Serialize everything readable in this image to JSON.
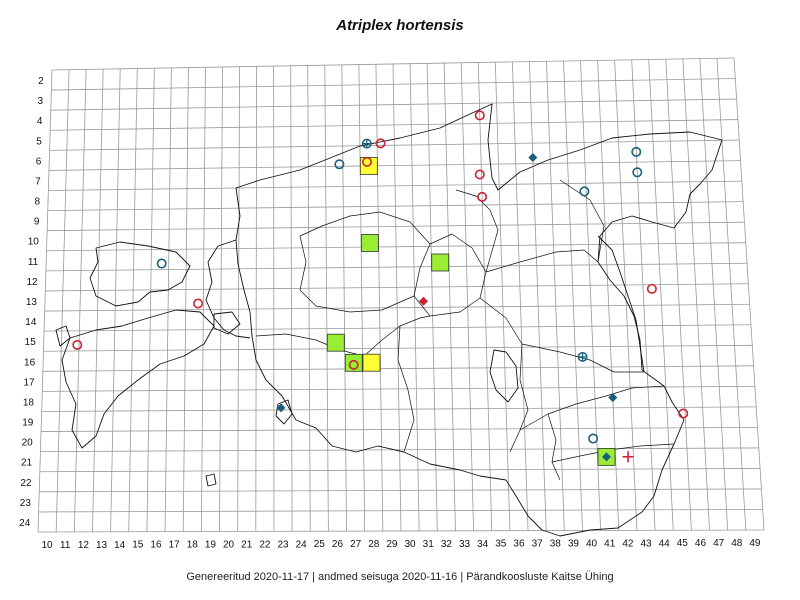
{
  "title": "Atriplex hortensis",
  "footer": "Genereeritud 2020-11-17  |  andmed seisuga 2020-11-16  |  Pärandkoosluste Kaitse Ühing",
  "colors": {
    "grid": "#999999",
    "border": "#111111",
    "yellow": "#ffff33",
    "green": "#99ee33",
    "red": "#cc2233",
    "blue": "#1a5f7a"
  },
  "grid": {
    "col_labels": [
      "10",
      "11",
      "12",
      "13",
      "14",
      "15",
      "16",
      "17",
      "18",
      "19",
      "20",
      "21",
      "22",
      "23",
      "24",
      "25",
      "26",
      "27",
      "28",
      "29",
      "30",
      "31",
      "32",
      "33",
      "34",
      "35",
      "36",
      "37",
      "38",
      "39",
      "40",
      "41",
      "42",
      "43",
      "44",
      "45",
      "46",
      "47",
      "48",
      "49"
    ],
    "row_labels": [
      "2",
      "3",
      "4",
      "5",
      "6",
      "7",
      "8",
      "9",
      "10",
      "11",
      "12",
      "13",
      "14",
      "15",
      "16",
      "17",
      "18",
      "19",
      "20",
      "21",
      "22",
      "23",
      "24"
    ]
  },
  "map_data": {
    "squares": [
      {
        "col": 28,
        "row": 6.5,
        "kind": "yellow"
      },
      {
        "col": 28,
        "row": 10.3,
        "kind": "green"
      },
      {
        "col": 32,
        "row": 11.3,
        "kind": "green"
      },
      {
        "col": 26,
        "row": 15.2,
        "kind": "green"
      },
      {
        "col": 27,
        "row": 16.2,
        "kind": "green"
      },
      {
        "col": 28,
        "row": 16.2,
        "kind": "yellow"
      },
      {
        "col": 41,
        "row": 20.9,
        "kind": "green"
      }
    ],
    "markers": [
      {
        "col": 34.5,
        "row": 4.1,
        "type": "circle",
        "color": "red"
      },
      {
        "col": 28.7,
        "row": 5.4,
        "type": "circle",
        "color": "red"
      },
      {
        "col": 27.9,
        "row": 5.4,
        "type": "circle-plus",
        "color": "blue"
      },
      {
        "col": 26.3,
        "row": 6.4,
        "type": "circle",
        "color": "blue"
      },
      {
        "col": 27.9,
        "row": 6.3,
        "type": "circle",
        "color": "red"
      },
      {
        "col": 34.4,
        "row": 7.0,
        "type": "circle",
        "color": "red"
      },
      {
        "col": 34.5,
        "row": 8.1,
        "type": "circle",
        "color": "red"
      },
      {
        "col": 37.5,
        "row": 6.2,
        "type": "diamond",
        "color": "blue"
      },
      {
        "col": 43.5,
        "row": 6.0,
        "type": "circle",
        "color": "blue"
      },
      {
        "col": 43.5,
        "row": 7.0,
        "type": "circle",
        "color": "blue"
      },
      {
        "col": 40.4,
        "row": 7.9,
        "type": "circle",
        "color": "blue"
      },
      {
        "col": 16.1,
        "row": 11.2,
        "type": "circle",
        "color": "blue"
      },
      {
        "col": 18.2,
        "row": 13.2,
        "type": "circle",
        "color": "red"
      },
      {
        "col": 31.0,
        "row": 13.2,
        "type": "diamond",
        "color": "red"
      },
      {
        "col": 44.0,
        "row": 12.7,
        "type": "circle",
        "color": "red"
      },
      {
        "col": 11.4,
        "row": 15.2,
        "type": "circle",
        "color": "red"
      },
      {
        "col": 27.0,
        "row": 16.3,
        "type": "circle",
        "color": "red"
      },
      {
        "col": 39.9,
        "row": 16.0,
        "type": "circle-plus",
        "color": "blue"
      },
      {
        "col": 22.9,
        "row": 18.4,
        "type": "diamond",
        "color": "blue"
      },
      {
        "col": 41.5,
        "row": 18.0,
        "type": "diamond",
        "color": "blue"
      },
      {
        "col": 45.4,
        "row": 18.8,
        "type": "circle",
        "color": "red"
      },
      {
        "col": 40.3,
        "row": 20.0,
        "type": "circle",
        "color": "blue"
      },
      {
        "col": 41.0,
        "row": 20.9,
        "type": "diamond",
        "color": "blue"
      },
      {
        "col": 42.2,
        "row": 20.9,
        "type": "cross",
        "color": "red"
      }
    ]
  }
}
